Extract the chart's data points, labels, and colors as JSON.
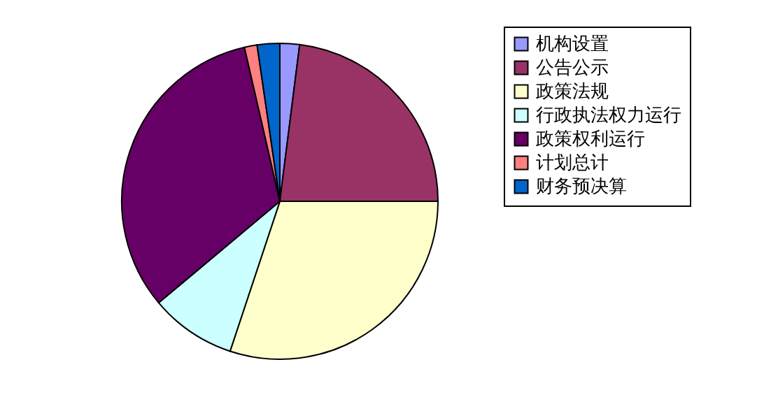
{
  "chart_data": {
    "type": "pie",
    "categories": [
      "机构设置",
      "公告公示",
      "政策法规",
      "行政执法权力运行",
      "政策权利运行",
      "计划总计",
      "财务预决算"
    ],
    "values": [
      2,
      23,
      30.1,
      8.8,
      32.5,
      1.3,
      2.3
    ],
    "colors": [
      "#9999ff",
      "#993366",
      "#ffffcc",
      "#ccffff",
      "#660066",
      "#ff8080",
      "#0066cc"
    ],
    "legend": "right"
  }
}
